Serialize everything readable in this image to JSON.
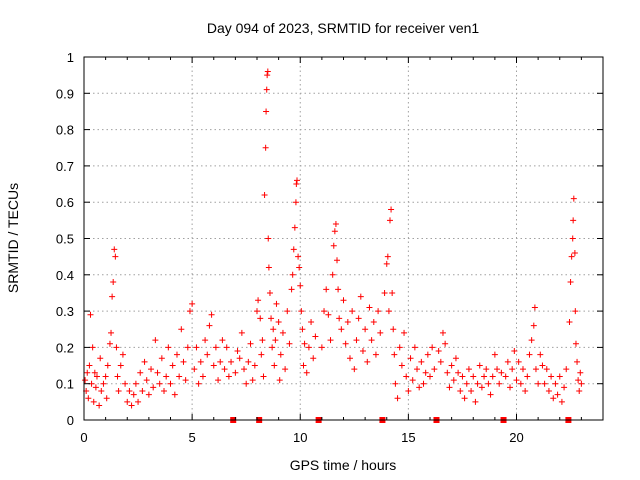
{
  "chart_data": {
    "type": "scatter",
    "title": "Day 094 of 2023, SRMTID for receiver ven1",
    "xlabel": "GPS time / hours",
    "ylabel": "SRMTID / TECUs",
    "xlim": [
      0,
      24
    ],
    "ylim": [
      0,
      1
    ],
    "xticks": [
      0,
      5,
      10,
      15,
      20
    ],
    "xtick_labels": [
      "0",
      "5",
      "10",
      "15",
      "20"
    ],
    "yticks": [
      0,
      0.1,
      0.2,
      0.3,
      0.4,
      0.5,
      0.6,
      0.7,
      0.8,
      0.9,
      1
    ],
    "ytick_labels": [
      "0",
      "0.1",
      "0.2",
      "0.3",
      "0.4",
      "0.5",
      "0.6",
      "0.7",
      "0.8",
      "0.9",
      "1"
    ],
    "grid": true,
    "marker": "+",
    "color": "#ff0000",
    "data_gap_markers_x": [
      6.9,
      8.1,
      10.85,
      13.8,
      16.3,
      19.4,
      22.4
    ],
    "points": [
      [
        0.05,
        0.11
      ],
      [
        0.1,
        0.08
      ],
      [
        0.15,
        0.13
      ],
      [
        0.2,
        0.06
      ],
      [
        0.25,
        0.15
      ],
      [
        0.3,
        0.29
      ],
      [
        0.35,
        0.1
      ],
      [
        0.4,
        0.2
      ],
      [
        0.45,
        0.05
      ],
      [
        0.5,
        0.13
      ],
      [
        0.55,
        0.09
      ],
      [
        0.6,
        0.12
      ],
      [
        0.7,
        0.04
      ],
      [
        0.75,
        0.17
      ],
      [
        0.8,
        0.08
      ],
      [
        0.9,
        0.1
      ],
      [
        1.0,
        0.12
      ],
      [
        1.05,
        0.06
      ],
      [
        1.1,
        0.15
      ],
      [
        1.2,
        0.21
      ],
      [
        1.25,
        0.24
      ],
      [
        1.3,
        0.34
      ],
      [
        1.35,
        0.38
      ],
      [
        1.4,
        0.47
      ],
      [
        1.45,
        0.45
      ],
      [
        1.5,
        0.2
      ],
      [
        1.55,
        0.12
      ],
      [
        1.6,
        0.08
      ],
      [
        1.7,
        0.15
      ],
      [
        1.8,
        0.18
      ],
      [
        1.9,
        0.1
      ],
      [
        2.0,
        0.05
      ],
      [
        2.1,
        0.08
      ],
      [
        2.2,
        0.04
      ],
      [
        2.3,
        0.07
      ],
      [
        2.4,
        0.1
      ],
      [
        2.5,
        0.05
      ],
      [
        2.6,
        0.13
      ],
      [
        2.7,
        0.08
      ],
      [
        2.8,
        0.16
      ],
      [
        2.9,
        0.11
      ],
      [
        3.0,
        0.07
      ],
      [
        3.1,
        0.14
      ],
      [
        3.2,
        0.09
      ],
      [
        3.3,
        0.22
      ],
      [
        3.4,
        0.13
      ],
      [
        3.5,
        0.1
      ],
      [
        3.6,
        0.17
      ],
      [
        3.7,
        0.08
      ],
      [
        3.8,
        0.12
      ],
      [
        3.9,
        0.2
      ],
      [
        4.0,
        0.1
      ],
      [
        4.1,
        0.15
      ],
      [
        4.2,
        0.07
      ],
      [
        4.3,
        0.18
      ],
      [
        4.4,
        0.12
      ],
      [
        4.5,
        0.25
      ],
      [
        4.6,
        0.16
      ],
      [
        4.7,
        0.11
      ],
      [
        4.8,
        0.2
      ],
      [
        4.9,
        0.3
      ],
      [
        5.0,
        0.32
      ],
      [
        5.1,
        0.14
      ],
      [
        5.2,
        0.2
      ],
      [
        5.3,
        0.1
      ],
      [
        5.4,
        0.16
      ],
      [
        5.5,
        0.12
      ],
      [
        5.6,
        0.22
      ],
      [
        5.7,
        0.18
      ],
      [
        5.8,
        0.26
      ],
      [
        5.9,
        0.29
      ],
      [
        6.0,
        0.15
      ],
      [
        6.1,
        0.2
      ],
      [
        6.2,
        0.11
      ],
      [
        6.3,
        0.16
      ],
      [
        6.4,
        0.22
      ],
      [
        6.5,
        0.14
      ],
      [
        6.6,
        0.2
      ],
      [
        6.7,
        0.12
      ],
      [
        6.8,
        0.16
      ],
      [
        7.0,
        0.13
      ],
      [
        7.1,
        0.19
      ],
      [
        7.2,
        0.17
      ],
      [
        7.3,
        0.24
      ],
      [
        7.4,
        0.14
      ],
      [
        7.5,
        0.1
      ],
      [
        7.6,
        0.16
      ],
      [
        7.7,
        0.21
      ],
      [
        7.8,
        0.11
      ],
      [
        7.9,
        0.15
      ],
      [
        8.0,
        0.3
      ],
      [
        8.05,
        0.33
      ],
      [
        8.15,
        0.28
      ],
      [
        8.2,
        0.18
      ],
      [
        8.25,
        0.22
      ],
      [
        8.3,
        0.12
      ],
      [
        8.35,
        0.62
      ],
      [
        8.4,
        0.75
      ],
      [
        8.42,
        0.85
      ],
      [
        8.45,
        0.91
      ],
      [
        8.47,
        0.95
      ],
      [
        8.5,
        0.96
      ],
      [
        8.52,
        0.5
      ],
      [
        8.55,
        0.42
      ],
      [
        8.6,
        0.35
      ],
      [
        8.65,
        0.28
      ],
      [
        8.7,
        0.2
      ],
      [
        8.75,
        0.25
      ],
      [
        8.8,
        0.15
      ],
      [
        8.85,
        0.22
      ],
      [
        8.9,
        0.32
      ],
      [
        9.0,
        0.27
      ],
      [
        9.05,
        0.11
      ],
      [
        9.1,
        0.18
      ],
      [
        9.2,
        0.24
      ],
      [
        9.3,
        0.14
      ],
      [
        9.4,
        0.3
      ],
      [
        9.5,
        0.21
      ],
      [
        9.6,
        0.36
      ],
      [
        9.65,
        0.4
      ],
      [
        9.7,
        0.47
      ],
      [
        9.75,
        0.53
      ],
      [
        9.8,
        0.6
      ],
      [
        9.82,
        0.65
      ],
      [
        9.85,
        0.66
      ],
      [
        9.9,
        0.45
      ],
      [
        9.95,
        0.42
      ],
      [
        10.0,
        0.37
      ],
      [
        10.05,
        0.3
      ],
      [
        10.1,
        0.25
      ],
      [
        10.15,
        0.15
      ],
      [
        10.2,
        0.21
      ],
      [
        10.3,
        0.13
      ],
      [
        10.4,
        0.2
      ],
      [
        10.5,
        0.27
      ],
      [
        10.6,
        0.17
      ],
      [
        10.7,
        0.23
      ],
      [
        11.0,
        0.2
      ],
      [
        11.1,
        0.3
      ],
      [
        11.2,
        0.36
      ],
      [
        11.3,
        0.29
      ],
      [
        11.4,
        0.22
      ],
      [
        11.5,
        0.4
      ],
      [
        11.55,
        0.48
      ],
      [
        11.6,
        0.52
      ],
      [
        11.65,
        0.54
      ],
      [
        11.7,
        0.44
      ],
      [
        11.75,
        0.36
      ],
      [
        11.8,
        0.28
      ],
      [
        11.9,
        0.25
      ],
      [
        12.0,
        0.33
      ],
      [
        12.1,
        0.21
      ],
      [
        12.2,
        0.27
      ],
      [
        12.3,
        0.17
      ],
      [
        12.4,
        0.3
      ],
      [
        12.5,
        0.14
      ],
      [
        12.6,
        0.22
      ],
      [
        12.7,
        0.28
      ],
      [
        12.8,
        0.34
      ],
      [
        12.9,
        0.19
      ],
      [
        13.0,
        0.25
      ],
      [
        13.1,
        0.16
      ],
      [
        13.2,
        0.31
      ],
      [
        13.3,
        0.22
      ],
      [
        13.4,
        0.27
      ],
      [
        13.5,
        0.18
      ],
      [
        13.6,
        0.3
      ],
      [
        13.7,
        0.24
      ],
      [
        13.9,
        0.35
      ],
      [
        14.0,
        0.43
      ],
      [
        14.05,
        0.45
      ],
      [
        14.1,
        0.3
      ],
      [
        14.15,
        0.55
      ],
      [
        14.2,
        0.58
      ],
      [
        14.25,
        0.35
      ],
      [
        14.3,
        0.25
      ],
      [
        14.35,
        0.18
      ],
      [
        14.4,
        0.1
      ],
      [
        14.5,
        0.06
      ],
      [
        14.6,
        0.2
      ],
      [
        14.7,
        0.15
      ],
      [
        14.8,
        0.24
      ],
      [
        14.9,
        0.12
      ],
      [
        15.0,
        0.08
      ],
      [
        15.1,
        0.17
      ],
      [
        15.2,
        0.11
      ],
      [
        15.3,
        0.2
      ],
      [
        15.4,
        0.14
      ],
      [
        15.5,
        0.09
      ],
      [
        15.6,
        0.16
      ],
      [
        15.7,
        0.1
      ],
      [
        15.8,
        0.13
      ],
      [
        15.9,
        0.18
      ],
      [
        16.0,
        0.12
      ],
      [
        16.1,
        0.2
      ],
      [
        16.2,
        0.14
      ],
      [
        16.4,
        0.19
      ],
      [
        16.5,
        0.16
      ],
      [
        16.6,
        0.24
      ],
      [
        16.7,
        0.21
      ],
      [
        16.8,
        0.13
      ],
      [
        16.9,
        0.09
      ],
      [
        17.0,
        0.15
      ],
      [
        17.1,
        0.11
      ],
      [
        17.2,
        0.17
      ],
      [
        17.3,
        0.13
      ],
      [
        17.4,
        0.08
      ],
      [
        17.5,
        0.12
      ],
      [
        17.6,
        0.06
      ],
      [
        17.7,
        0.1
      ],
      [
        17.8,
        0.14
      ],
      [
        17.9,
        0.08
      ],
      [
        18.0,
        0.12
      ],
      [
        18.1,
        0.05
      ],
      [
        18.2,
        0.1
      ],
      [
        18.3,
        0.15
      ],
      [
        18.4,
        0.09
      ],
      [
        18.5,
        0.12
      ],
      [
        18.6,
        0.14
      ],
      [
        18.7,
        0.1
      ],
      [
        18.8,
        0.07
      ],
      [
        18.9,
        0.12
      ],
      [
        19.0,
        0.18
      ],
      [
        19.1,
        0.14
      ],
      [
        19.2,
        0.1
      ],
      [
        19.3,
        0.13
      ],
      [
        19.5,
        0.12
      ],
      [
        19.6,
        0.16
      ],
      [
        19.7,
        0.09
      ],
      [
        19.8,
        0.14
      ],
      [
        19.9,
        0.19
      ],
      [
        20.0,
        0.11
      ],
      [
        20.1,
        0.16
      ],
      [
        20.2,
        0.1
      ],
      [
        20.3,
        0.14
      ],
      [
        20.4,
        0.08
      ],
      [
        20.5,
        0.12
      ],
      [
        20.6,
        0.18
      ],
      [
        20.7,
        0.22
      ],
      [
        20.8,
        0.26
      ],
      [
        20.85,
        0.31
      ],
      [
        20.9,
        0.14
      ],
      [
        21.0,
        0.1
      ],
      [
        21.1,
        0.18
      ],
      [
        21.2,
        0.15
      ],
      [
        21.3,
        0.1
      ],
      [
        21.4,
        0.14
      ],
      [
        21.5,
        0.08
      ],
      [
        21.6,
        0.12
      ],
      [
        21.7,
        0.06
      ],
      [
        21.8,
        0.1
      ],
      [
        21.9,
        0.07
      ],
      [
        22.0,
        0.12
      ],
      [
        22.1,
        0.05
      ],
      [
        22.2,
        0.09
      ],
      [
        22.3,
        0.14
      ],
      [
        22.45,
        0.27
      ],
      [
        22.5,
        0.38
      ],
      [
        22.55,
        0.45
      ],
      [
        22.6,
        0.5
      ],
      [
        22.62,
        0.55
      ],
      [
        22.65,
        0.61
      ],
      [
        22.7,
        0.46
      ],
      [
        22.72,
        0.3
      ],
      [
        22.75,
        0.21
      ],
      [
        22.8,
        0.16
      ],
      [
        22.85,
        0.11
      ],
      [
        22.9,
        0.08
      ],
      [
        22.95,
        0.13
      ],
      [
        23.0,
        0.1
      ]
    ]
  }
}
